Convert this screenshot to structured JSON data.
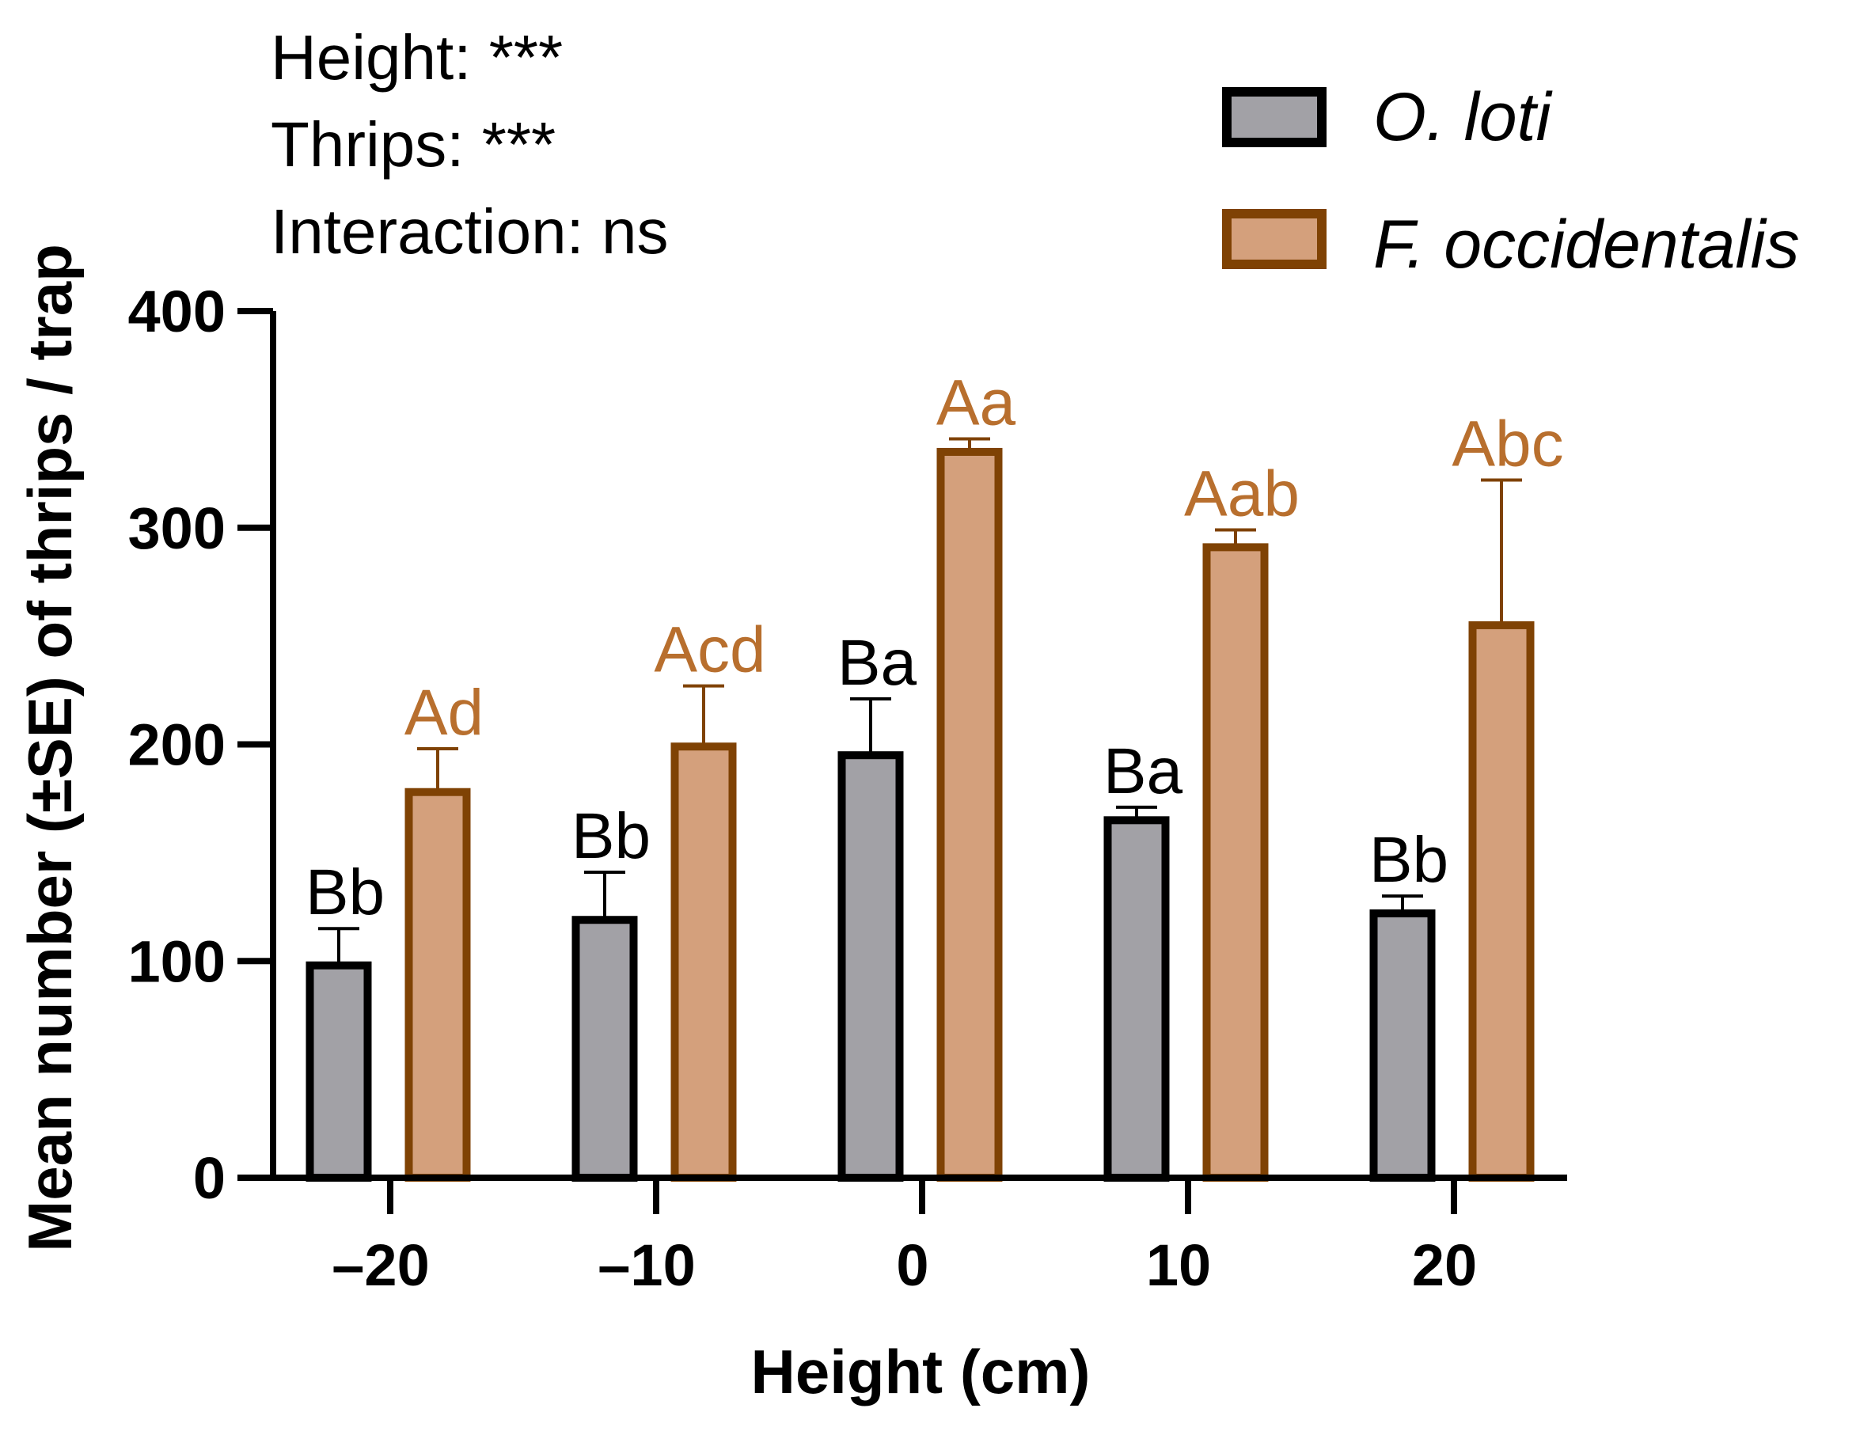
{
  "chart_data": {
    "type": "bar",
    "xlabel": "Height (cm)",
    "ylabel": "Mean number (±SE) of thrips / trap",
    "ylim": [
      0,
      400
    ],
    "yticks": [
      "0",
      "100",
      "200",
      "300",
      "400"
    ],
    "categories": [
      "–20",
      "–10",
      "0",
      "10",
      "20"
    ],
    "stats_annotations": [
      "Height: ***",
      "Thrips: ***",
      "Interaction: ns"
    ],
    "legend_position": "top-right",
    "series": [
      {
        "name": "O. loti",
        "fill": "#a2a1a6",
        "edge": "#000000",
        "label_color": "#000000",
        "values": [
          98,
          119,
          195,
          165,
          122
        ],
        "errors": [
          17,
          22,
          26,
          6,
          8
        ],
        "letters": [
          "Bb",
          "Bb",
          "Ba",
          "Ba",
          "Bb"
        ]
      },
      {
        "name": "F. occidentalis",
        "fill": "#d4a07c",
        "edge": "#7f4204",
        "label_color": "#b86f2e",
        "values": [
          178,
          199,
          335,
          291,
          255
        ],
        "errors": [
          20,
          28,
          6,
          8,
          67
        ],
        "letters": [
          "Ad",
          "Acd",
          "Aa",
          "Aab",
          "Abc"
        ]
      }
    ]
  }
}
